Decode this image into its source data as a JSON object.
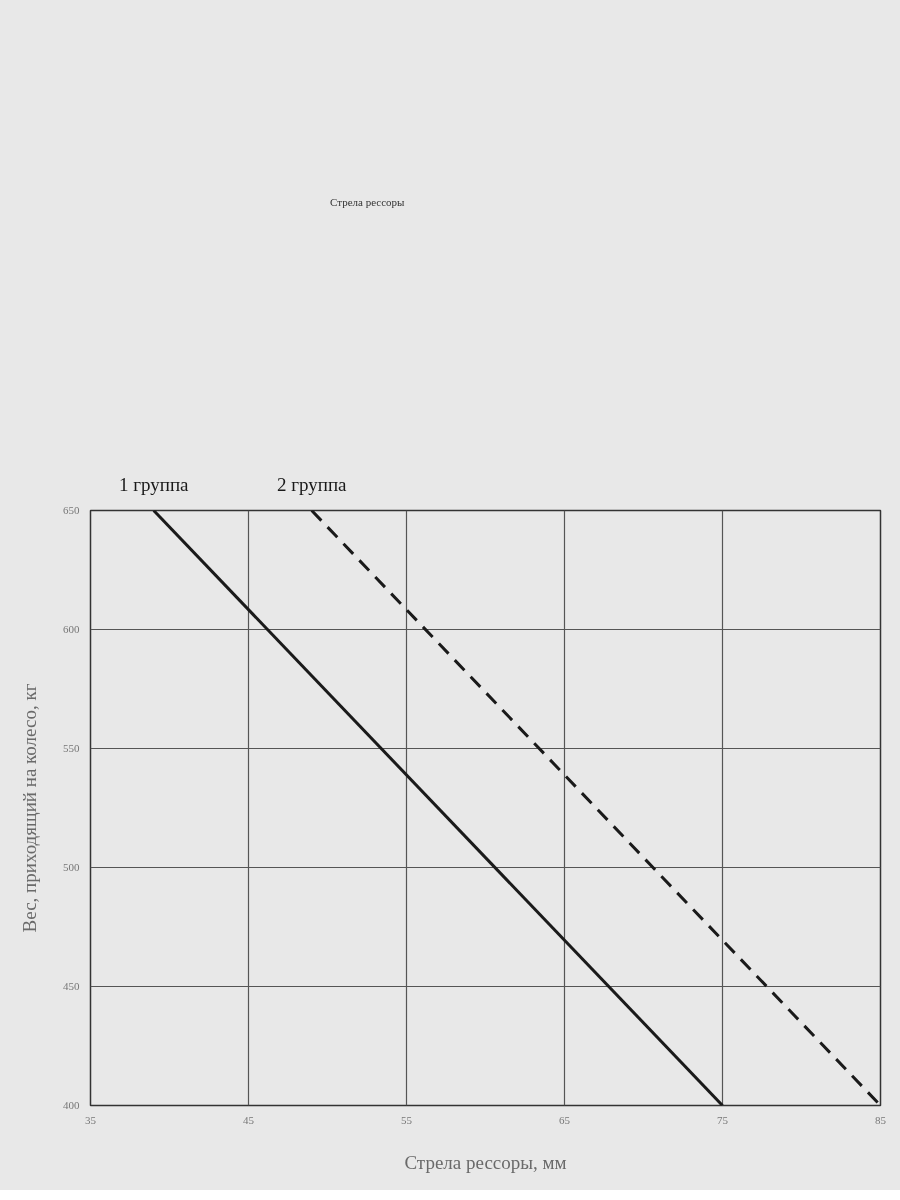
{
  "chart_data": {
    "type": "line",
    "xlabel": "Стрела рессоры, мм",
    "ylabel": "Вес, приходящий на колесо, кг",
    "annotations": [
      "Стрела рессоры"
    ],
    "series": [
      {
        "name": "1 группа",
        "color": "#1a1a1a",
        "x": [
          39,
          75
        ],
        "values": [
          650,
          400
        ],
        "line_style": "solid"
      },
      {
        "name": "2 группа",
        "color": "#1a1a1a",
        "x": [
          49,
          85
        ],
        "values": [
          650,
          400
        ],
        "line_style": "dashed"
      }
    ],
    "xlim": [
      35,
      85
    ],
    "xticks": [
      35,
      45,
      55,
      65,
      75,
      85
    ],
    "ylim": [
      400,
      650
    ],
    "yticks": [
      400,
      450,
      500,
      550,
      600,
      650
    ],
    "grid": true
  }
}
